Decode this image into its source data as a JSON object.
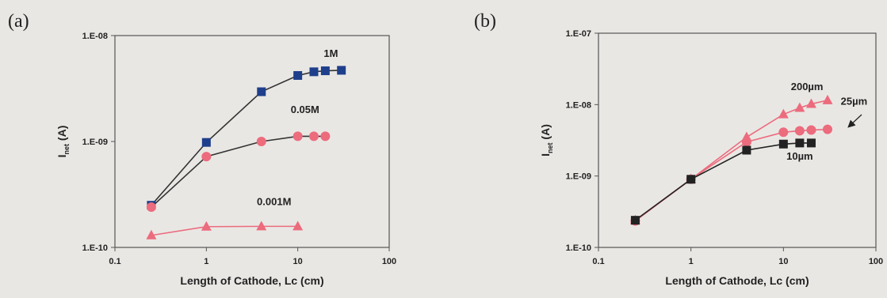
{
  "chart_data": [
    {
      "type": "line",
      "panel_label": "(a)",
      "xlabel": "Length of Cathode, Lc (cm)",
      "ylabel_main": "I",
      "ylabel_sub": "net",
      "ylabel_unit": " (A)",
      "xscale": "log",
      "yscale": "log",
      "xlim": [
        0.1,
        100
      ],
      "ylim": [
        1e-10,
        1e-08
      ],
      "xticks": [
        0.1,
        1,
        10,
        100
      ],
      "xtick_labels": [
        "0.1",
        "1",
        "10",
        "100"
      ],
      "yticks": [
        1e-10,
        1e-09,
        1e-08
      ],
      "ytick_labels": [
        "1.E-10",
        "1.E-09",
        "1.E-08"
      ],
      "series": [
        {
          "name": "1M",
          "color": "#1e3f8c",
          "line_color": "#333333",
          "marker": "square",
          "x": [
            0.25,
            1,
            4,
            10,
            15,
            20,
            30
          ],
          "y": [
            2.5e-10,
            9.8e-10,
            2.95e-09,
            4.2e-09,
            4.55e-09,
            4.65e-09,
            4.7e-09
          ]
        },
        {
          "name": "0.05M",
          "color": "#ec6b7d",
          "line_color": "#333333",
          "marker": "circle",
          "x": [
            0.25,
            1,
            4,
            10,
            15,
            20
          ],
          "y": [
            2.4e-10,
            7.2e-10,
            1e-09,
            1.12e-09,
            1.12e-09,
            1.12e-09
          ]
        },
        {
          "name": "0.001M",
          "color": "#ec6b7d",
          "line_color": "#ec6b7d",
          "marker": "triangle",
          "x": [
            0.25,
            1,
            4,
            10
          ],
          "y": [
            1.3e-10,
            1.57e-10,
            1.58e-10,
            1.58e-10
          ]
        }
      ],
      "annotations": [
        {
          "text": "1M",
          "x": 23,
          "y": 6.3e-09
        },
        {
          "text": "0.05M",
          "x": 12,
          "y": 1.85e-09
        },
        {
          "text": "0.001M",
          "x": 5.5,
          "y": 2.5e-10
        }
      ],
      "grid": false
    },
    {
      "type": "line",
      "panel_label": "(b)",
      "xlabel": "Length of Cathode, Lc (cm)",
      "ylabel_main": "I",
      "ylabel_sub": "net",
      "ylabel_unit": " (A)",
      "xscale": "log",
      "yscale": "log",
      "xlim": [
        0.1,
        100
      ],
      "ylim": [
        1e-10,
        1e-07
      ],
      "xticks": [
        0.1,
        1,
        10,
        100
      ],
      "xtick_labels": [
        "0.1",
        "1",
        "10",
        "100"
      ],
      "yticks": [
        1e-10,
        1e-09,
        1e-08,
        1e-07
      ],
      "ytick_labels": [
        "1.E-10",
        "1.E-09",
        "1.E-08",
        "1.E-07"
      ],
      "series": [
        {
          "name": "200µm",
          "color": "#ec6b7d",
          "line_color": "#ec6b7d",
          "marker": "triangle",
          "x": [
            0.25,
            1,
            4,
            10,
            15,
            20,
            30
          ],
          "y": [
            2.4e-10,
            9e-10,
            3.5e-09,
            7.3e-09,
            9e-09,
            1.02e-08,
            1.15e-08
          ]
        },
        {
          "name": "25µm",
          "color": "#ec6b7d",
          "line_color": "#ec6b7d",
          "marker": "circle",
          "x": [
            0.25,
            1,
            4,
            10,
            15,
            20,
            30
          ],
          "y": [
            2.35e-10,
            9e-10,
            3e-09,
            4.1e-09,
            4.3e-09,
            4.4e-09,
            4.5e-09
          ]
        },
        {
          "name": "10µm",
          "color": "#222222",
          "line_color": "#222222",
          "marker": "square",
          "x": [
            0.25,
            1,
            4,
            10,
            15,
            20
          ],
          "y": [
            2.4e-10,
            9e-10,
            2.3e-09,
            2.8e-09,
            2.9e-09,
            2.9e-09
          ]
        }
      ],
      "annotations": [
        {
          "text": "200µm",
          "x": 18,
          "y": 1.6e-08
        },
        {
          "text": "25µm",
          "x": 58,
          "y": 1e-08
        },
        {
          "text": "10µm",
          "x": 15,
          "y": 1.7e-09
        }
      ],
      "grid": false
    }
  ]
}
